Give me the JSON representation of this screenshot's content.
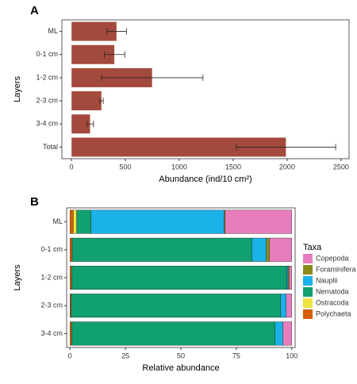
{
  "chart_data": [
    {
      "type": "bar",
      "panel_label": "A",
      "orientation": "horizontal",
      "categories": [
        "ML",
        "0-1 cm",
        "1-2 cm",
        "2-3 cm",
        "3-4 cm",
        "Total"
      ],
      "values": [
        420,
        400,
        750,
        280,
        175,
        1990
      ],
      "errors": [
        90,
        95,
        470,
        15,
        30,
        460
      ],
      "color": "#a34a3c",
      "xlim": [
        -88,
        2574
      ],
      "xticks": [
        0,
        500,
        1000,
        1500,
        2000,
        2500
      ],
      "xlabel": "Abundance (ind/10 cm²)",
      "ylabel": "Layers"
    },
    {
      "type": "stacked_bar",
      "panel_label": "B",
      "orientation": "horizontal",
      "categories": [
        "ML",
        "0-1 cm",
        "1-2 cm",
        "2-3 cm",
        "3-4 cm"
      ],
      "series": [
        {
          "name": "Copepoda",
          "color": "#e87dbd",
          "values": [
            30,
            10,
            1.2,
            2.5,
            4
          ]
        },
        {
          "name": "Foraminifera",
          "color": "#8c8c1e",
          "values": [
            0.5,
            1.5,
            0.5,
            0,
            0
          ]
        },
        {
          "name": "Nauplii",
          "color": "#1ab2e8",
          "values": [
            60,
            6.5,
            0.5,
            2.5,
            3.5
          ]
        },
        {
          "name": "Nematoda",
          "color": "#11a06f",
          "values": [
            6.5,
            81,
            97,
            94.5,
            91.7
          ]
        },
        {
          "name": "Ostracoda",
          "color": "#f0e442",
          "values": [
            1.5,
            0,
            0,
            0,
            0
          ]
        },
        {
          "name": "Polychaeta",
          "color": "#d55e00",
          "values": [
            1.5,
            1,
            0.8,
            0.5,
            0.8
          ]
        }
      ],
      "xlim": [
        -1.5,
        101.5
      ],
      "xticks": [
        0,
        25,
        50,
        75,
        100
      ],
      "xlabel": "Relative abundance",
      "ylabel": "Layers",
      "legend_title": "Taxa"
    }
  ]
}
